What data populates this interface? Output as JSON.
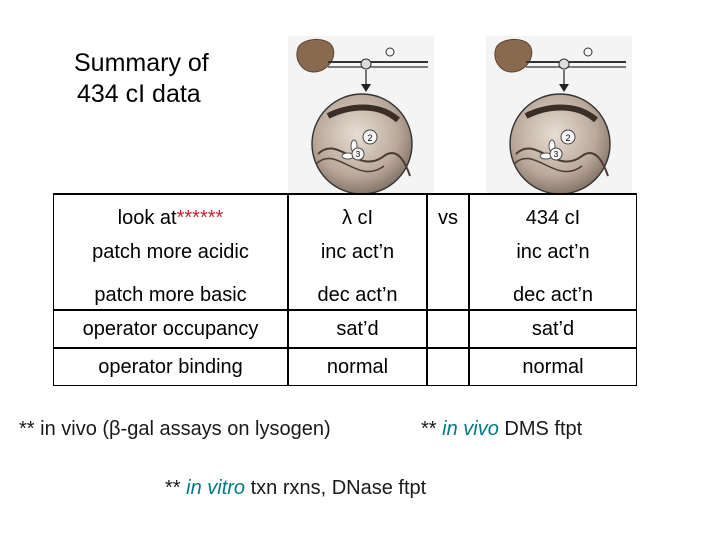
{
  "title": {
    "line1": "Summary of",
    "line2": "434 cI data"
  },
  "figures": [
    {
      "name": "lambda repressor-DNA illustration",
      "labels": [
        "2",
        "3"
      ]
    },
    {
      "name": "434 repressor-DNA illustration",
      "labels": [
        "2",
        "3"
      ]
    }
  ],
  "table": {
    "header": {
      "property": "look at",
      "stars": "******",
      "col1": "λ cI",
      "vs": "vs",
      "col2": "434 cI"
    },
    "rows": [
      {
        "property": "patch more acidic",
        "col1": "inc act’n",
        "col2": "inc act’n"
      },
      {
        "property": "patch more basic",
        "col1": "dec act’n",
        "col2": "dec act’n"
      },
      {
        "property": "operator occupancy",
        "col1": "sat’d",
        "col2": "sat’d"
      },
      {
        "property": "operator binding",
        "col1": "normal",
        "col2": "normal"
      }
    ]
  },
  "notes": {
    "n1": "** in vivo (β-gal assays on lysogen)",
    "n2_prefix": "** ",
    "n2_italic": "in vivo",
    "n2_rest": " DMS ftpt",
    "n3_prefix": "** ",
    "n3_italic": "in vitro",
    "n3_rest": " txn rxns, DNase ftpt"
  },
  "colors": {
    "stars": "#d31b2c",
    "teal": "#007a80"
  }
}
